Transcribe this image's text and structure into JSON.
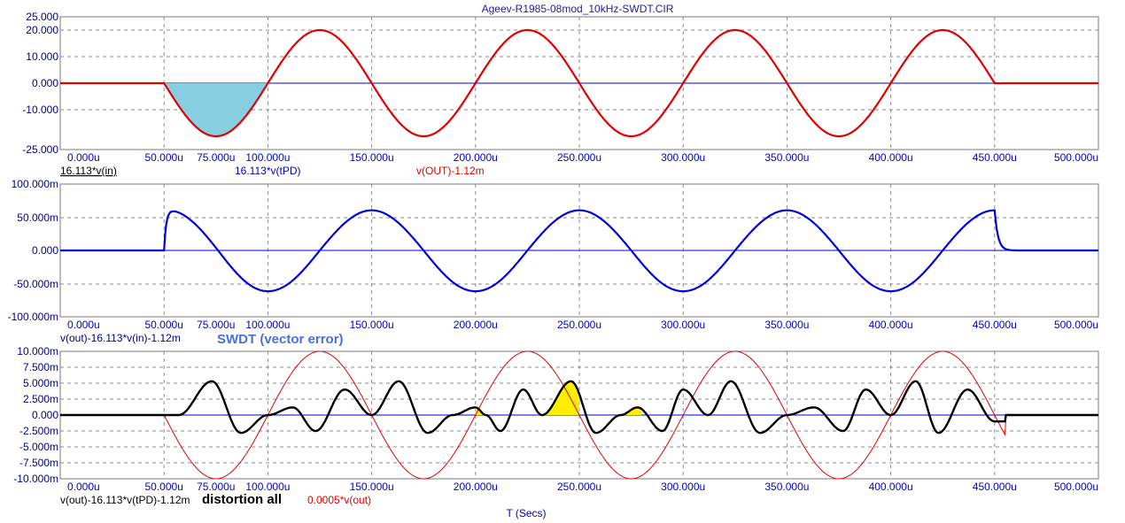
{
  "title": "Ageev-R1985-08mod_10kHz-SWDT.CIR",
  "x_axis_label": "T (Secs)",
  "panels": [
    {
      "id": "p1",
      "y_ticks": [
        "25.000",
        "20.000",
        "10.000",
        "0.000",
        "-10.000",
        "-25.000"
      ],
      "x_ticks": [
        "0.000u",
        "50.000u",
        "75.000u",
        "100.000u",
        "150.000u",
        "200.000u",
        "250.000u",
        "300.000u",
        "350.000u",
        "400.000u",
        "450.000u",
        "500.000u"
      ],
      "legend": [
        {
          "text": "16.113*v(in)",
          "color": "#000000",
          "underline": true
        },
        {
          "text": "16.113*v(tPD)",
          "color": "#0000cd"
        },
        {
          "text": "v(OUT)-1.12m",
          "color": "#e00000"
        }
      ]
    },
    {
      "id": "p2",
      "y_ticks": [
        "100.000m",
        "50.000m",
        "0.000",
        "-50.000m",
        "-100.000m"
      ],
      "x_ticks": [
        "0.000u",
        "50.000u",
        "75.000u",
        "100.000u",
        "150.000u",
        "200.000u",
        "250.000u",
        "300.000u",
        "350.000u",
        "400.000u",
        "450.000u",
        "500.000u"
      ],
      "legend": [
        {
          "text": "v(out)-16.113*v(in)-1.12m",
          "color": "#000080"
        }
      ],
      "annotation": "SWDT (vector error)"
    },
    {
      "id": "p3",
      "y_ticks": [
        "10.000m",
        "7.500m",
        "5.000m",
        "2.500m",
        "0.000",
        "-2.500m",
        "-5.000m",
        "-7.500m",
        "-10.000m"
      ],
      "x_ticks": [
        "0.000u",
        "50.000u",
        "75.000u",
        "100.000u",
        "150.000u",
        "200.000u",
        "250.000u",
        "300.000u",
        "350.000u",
        "400.000u",
        "450.000u",
        "500.000u"
      ],
      "legend": [
        {
          "text": "v(out)-16.113*v(tPD)-1.12m",
          "color": "#000000"
        },
        {
          "text": "0.0005*v(out)",
          "color": "#e00000"
        }
      ],
      "annotation": "distortion all"
    }
  ],
  "colors": {
    "grid": "#8a8a8a",
    "frame": "#7a7a7a",
    "zero_line": "#0000cd",
    "out_red": "#e00000",
    "error_blue": "#0000dd",
    "distortion_black": "#000000",
    "shade_cyan": "#87cee0",
    "shade_yellow": "#ffee00",
    "annotation_blue": "#4a6fe0"
  },
  "chart_data": [
    {
      "type": "line",
      "x_unit": "us",
      "xlim": [
        0,
        500
      ],
      "ylim": [
        -25,
        25
      ],
      "series": [
        {
          "name": "16.113*v(in)",
          "note_shape": "0 until 50us, then -20*sin(2*pi*10kHz*(t-50us)) until 450us"
        },
        {
          "name": "16.113*v(tPD)",
          "note_shape": "0 until 50us, then -20*sin(2*pi*10kHz*(t-50us)) until 450us"
        },
        {
          "name": "v(OUT)-1.12m",
          "note_shape": "0 until 50us, then -20*sin(2*pi*10kHz*(t-50us)) until ~455us"
        }
      ],
      "key_points": {
        "x": [
          50,
          75,
          100,
          125,
          150,
          175,
          200,
          225,
          250,
          275,
          300,
          325,
          350,
          375,
          400,
          425,
          450
        ],
        "y": [
          0,
          -20,
          0,
          20,
          0,
          -20,
          0,
          20,
          0,
          -20,
          0,
          20,
          0,
          -20,
          0,
          20,
          0
        ]
      },
      "shaded_region_x": [
        50,
        100
      ]
    },
    {
      "type": "line",
      "x_unit": "us",
      "xlim": [
        0,
        500
      ],
      "ylim": [
        -0.1,
        0.1
      ],
      "series": [
        {
          "name": "v(out)-16.113*v(in)-1.12m"
        }
      ],
      "key_points": {
        "x": [
          0,
          50,
          52,
          100,
          150,
          200,
          250,
          300,
          350,
          400,
          450,
          455
        ],
        "y": [
          0,
          0,
          0.058,
          -0.06,
          0.062,
          -0.06,
          0.062,
          -0.06,
          0.062,
          -0.06,
          0.062,
          0
        ]
      }
    },
    {
      "type": "line",
      "x_unit": "us",
      "xlim": [
        0,
        500
      ],
      "ylim": [
        -0.01,
        0.01
      ],
      "series": [
        {
          "name": "v(out)-16.113*v(tPD)-1.12m",
          "note_shape": "third-harmonic-like distortion, peak ~5.3m"
        },
        {
          "name": "0.0005*v(out)",
          "note_shape": "0.01*(-sin) from 50us to 455us"
        }
      ],
      "key_points_black": {
        "x": [
          50,
          57,
          73,
          87,
          100,
          112,
          123,
          137,
          150,
          163,
          177,
          189,
          200,
          205,
          212,
          223,
          232,
          246,
          258,
          270,
          278,
          290,
          300,
          312,
          323,
          337,
          350,
          363,
          377,
          388,
          400,
          412,
          423,
          437,
          450
        ],
        "y": [
          0,
          0,
          0.0053,
          -0.0028,
          0,
          0.0012,
          -0.0025,
          0.004,
          0,
          0.0053,
          -0.0028,
          0,
          0.0012,
          0,
          -0.0025,
          0.004,
          0,
          0.0053,
          -0.0028,
          0,
          0.0012,
          -0.0025,
          0.004,
          0,
          0.0053,
          -0.0028,
          0,
          0.0012,
          -0.0025,
          0.004,
          0,
          0.0053,
          -0.0028,
          0.004,
          -0.001
        ]
      },
      "shaded_regions_x": [
        [
          200,
          212
        ],
        [
          230,
          250
        ],
        [
          258,
          280
        ]
      ]
    }
  ]
}
